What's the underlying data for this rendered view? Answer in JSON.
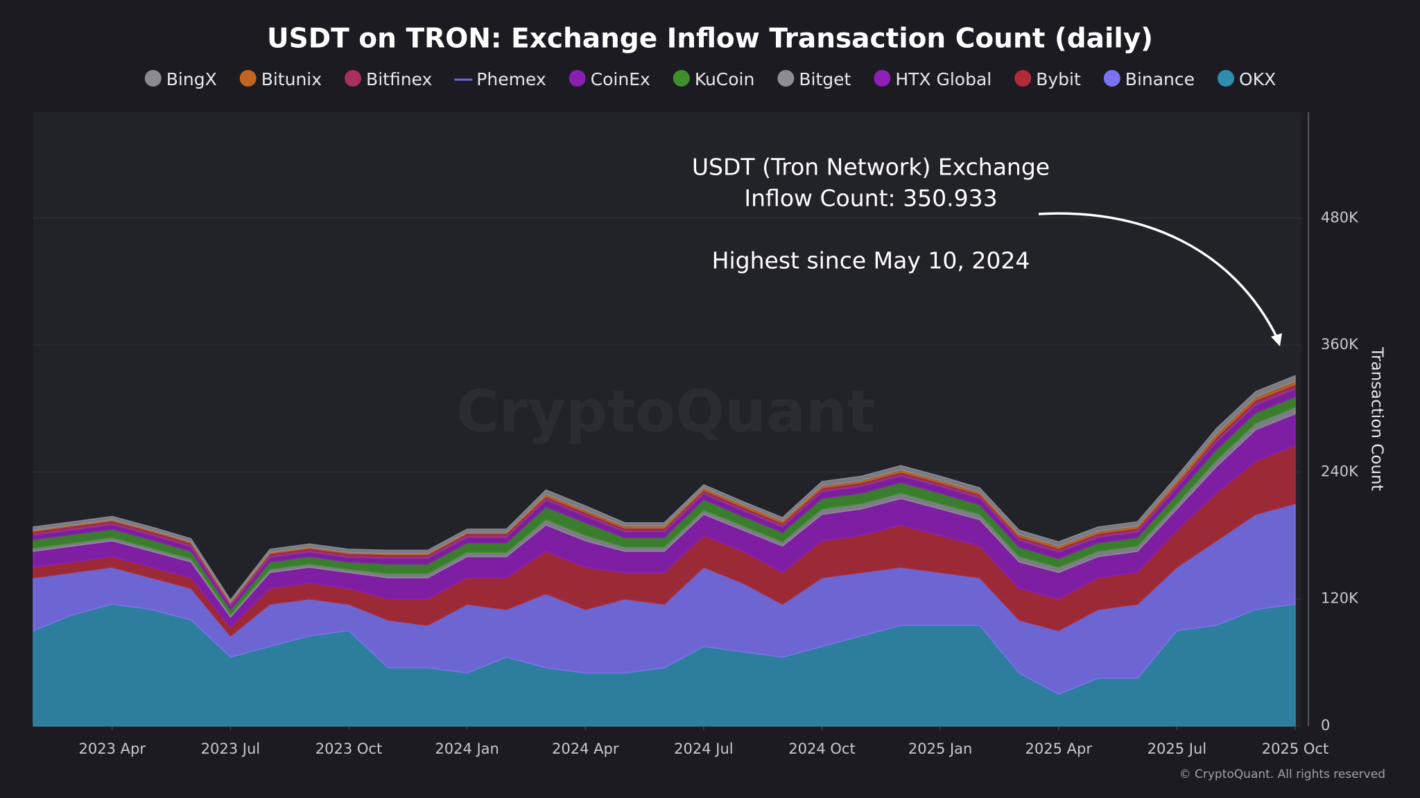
{
  "chart_data": {
    "type": "stacked-area",
    "title": "USDT on TRON: Exchange Inflow Transaction Count (daily)",
    "y_label": "Transaction Count",
    "watermark": "CryptoQuant",
    "copyright": "© CryptoQuant. All rights reserved",
    "annotations": [
      "USDT (Tron Network) Exchange",
      "Inflow Count: 350.933",
      "Highest since May 10, 2024"
    ],
    "x": [
      "2023-02",
      "2023-03",
      "2023-04",
      "2023-05",
      "2023-06",
      "2023-07",
      "2023-08",
      "2023-09",
      "2023-10",
      "2023-11",
      "2023-12",
      "2024-01",
      "2024-02",
      "2024-03",
      "2024-04",
      "2024-05",
      "2024-06",
      "2024-07",
      "2024-08",
      "2024-09",
      "2024-10",
      "2024-11",
      "2024-12",
      "2025-01",
      "2025-02",
      "2025-03",
      "2025-04",
      "2025-05",
      "2025-06",
      "2025-07",
      "2025-08",
      "2025-09",
      "2025-10"
    ],
    "xlim": [
      "2023-02",
      "2025-10"
    ],
    "xticks": [
      {
        "value": "2023-04",
        "label": "2023 Apr"
      },
      {
        "value": "2023-07",
        "label": "2023 Jul"
      },
      {
        "value": "2023-10",
        "label": "2023 Oct"
      },
      {
        "value": "2024-01",
        "label": "2024 Jan"
      },
      {
        "value": "2024-04",
        "label": "2024 Apr"
      },
      {
        "value": "2024-07",
        "label": "2024 Jul"
      },
      {
        "value": "2024-10",
        "label": "2024 Oct"
      },
      {
        "value": "2025-01",
        "label": "2025 Jan"
      },
      {
        "value": "2025-04",
        "label": "2025 Apr"
      },
      {
        "value": "2025-07",
        "label": "2025 Jul"
      },
      {
        "value": "2025-10",
        "label": "2025 Oct"
      }
    ],
    "ylim": [
      0,
      580000
    ],
    "yticks": [
      0,
      {
        "value": 120000,
        "label": "120K"
      },
      {
        "value": 240000,
        "label": "240K"
      },
      {
        "value": 360000,
        "label": "360K"
      },
      {
        "value": 480000,
        "label": "480K"
      }
    ],
    "grid": true,
    "series": [
      {
        "name": "BingX",
        "color": "#8a8a93",
        "values": [
          3000,
          3000,
          3000,
          3000,
          3000,
          2000,
          3000,
          3000,
          3000,
          3000,
          3000,
          3000,
          3000,
          4000,
          4000,
          3000,
          3000,
          3000,
          3000,
          3000,
          4000,
          4000,
          4000,
          4000,
          4000,
          4000,
          4000,
          4000,
          4000,
          4000,
          5000,
          5000,
          5000
        ]
      },
      {
        "name": "Bitunix",
        "color": "#c2661f",
        "values": [
          1000,
          1000,
          1000,
          1000,
          1000,
          1000,
          1000,
          1000,
          1000,
          1000,
          1000,
          1000,
          1000,
          2000,
          2000,
          2000,
          2000,
          2000,
          2000,
          2000,
          2000,
          2000,
          2000,
          2000,
          2000,
          2000,
          2000,
          2000,
          2000,
          3000,
          3000,
          3000,
          3000
        ]
      },
      {
        "name": "Bitfinex",
        "color": "#a8305f",
        "values": [
          3000,
          3000,
          3000,
          3000,
          3000,
          2000,
          3000,
          3000,
          3000,
          3000,
          3000,
          3000,
          3000,
          3000,
          3000,
          3000,
          3000,
          3000,
          3000,
          3000,
          3000,
          3000,
          3000,
          3000,
          3000,
          3000,
          3000,
          3000,
          3000,
          3000,
          4000,
          4000,
          4000
        ]
      },
      {
        "name": "Phemex",
        "color": "#6b6bd6",
        "marker": "line",
        "values": [
          1000,
          1000,
          1000,
          1000,
          1000,
          1000,
          1000,
          1000,
          1000,
          1000,
          1000,
          1000,
          1000,
          1000,
          1000,
          1000,
          1000,
          1000,
          1000,
          1000,
          1000,
          1000,
          1000,
          1000,
          1000,
          1000,
          1000,
          1000,
          1000,
          1000,
          1000,
          1000,
          1000
        ]
      },
      {
        "name": "CoinEx",
        "color": "#8a1fb0",
        "values": [
          4000,
          4000,
          4000,
          4000,
          4000,
          3000,
          4000,
          4000,
          4000,
          5000,
          5000,
          5000,
          5000,
          6000,
          6000,
          5000,
          5000,
          5000,
          5000,
          5000,
          6000,
          6000,
          6000,
          6000,
          6000,
          6000,
          6000,
          5000,
          5000,
          6000,
          7000,
          7000,
          7000
        ]
      },
      {
        "name": "KuCoin",
        "color": "#3e8e2e",
        "values": [
          8000,
          8000,
          8000,
          8000,
          7000,
          5000,
          7000,
          7000,
          7000,
          9000,
          9000,
          9000,
          9000,
          12000,
          12000,
          9000,
          9000,
          10000,
          9000,
          9000,
          10000,
          10000,
          10000,
          10000,
          9000,
          9000,
          8000,
          8000,
          8000,
          9000,
          10000,
          10000,
          10000
        ]
      },
      {
        "name": "Bitget",
        "color": "#8d8d96",
        "values": [
          3000,
          3000,
          3000,
          3000,
          3000,
          2000,
          3000,
          3000,
          3000,
          4000,
          4000,
          4000,
          4000,
          5000,
          5000,
          4000,
          4000,
          4000,
          4000,
          4000,
          5000,
          5000,
          5000,
          5000,
          5000,
          5000,
          5000,
          5000,
          5000,
          5000,
          6000,
          6000,
          6000
        ]
      },
      {
        "name": "HTX Global",
        "color": "#8e1fb8",
        "values": [
          15000,
          15000,
          15000,
          15000,
          15000,
          10000,
          15000,
          15000,
          15000,
          20000,
          20000,
          20000,
          20000,
          25000,
          25000,
          20000,
          20000,
          20000,
          20000,
          25000,
          25000,
          25000,
          25000,
          25000,
          25000,
          25000,
          25000,
          20000,
          20000,
          20000,
          25000,
          30000,
          30000
        ]
      },
      {
        "name": "Bybit",
        "color": "#b02a38",
        "values": [
          10000,
          10000,
          10000,
          10000,
          10000,
          8000,
          15000,
          15000,
          15000,
          20000,
          25000,
          25000,
          30000,
          40000,
          40000,
          25000,
          30000,
          30000,
          30000,
          30000,
          35000,
          35000,
          40000,
          35000,
          30000,
          30000,
          30000,
          30000,
          30000,
          35000,
          45000,
          50000,
          55000
        ]
      },
      {
        "name": "Binance",
        "color": "#7a72f0",
        "values": [
          50000,
          40000,
          35000,
          30000,
          30000,
          20000,
          40000,
          35000,
          25000,
          45000,
          40000,
          65000,
          45000,
          70000,
          60000,
          70000,
          60000,
          75000,
          65000,
          50000,
          65000,
          60000,
          55000,
          50000,
          45000,
          50000,
          60000,
          65000,
          70000,
          60000,
          80000,
          90000,
          95000
        ]
      },
      {
        "name": "OKX",
        "color": "#2f8db0",
        "values": [
          90000,
          105000,
          115000,
          110000,
          100000,
          65000,
          75000,
          85000,
          90000,
          55000,
          55000,
          50000,
          65000,
          55000,
          50000,
          50000,
          55000,
          75000,
          70000,
          65000,
          75000,
          85000,
          95000,
          95000,
          95000,
          50000,
          30000,
          45000,
          45000,
          90000,
          95000,
          110000,
          115000
        ]
      }
    ]
  }
}
